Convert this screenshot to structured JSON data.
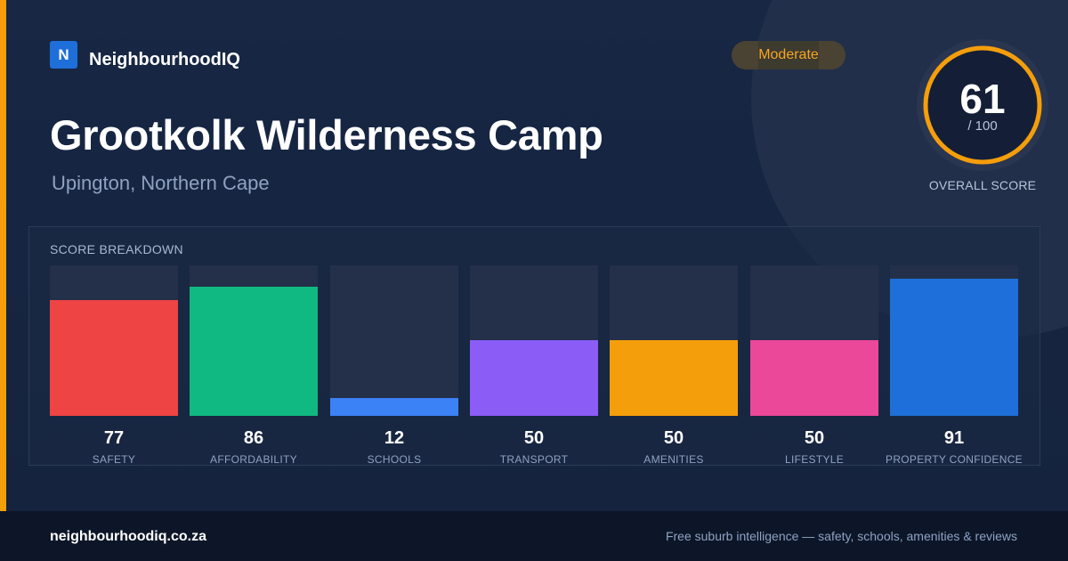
{
  "brand": {
    "logo_letter": "N",
    "name": "NeighbourhoodIQ",
    "color": "#1e6fd9"
  },
  "badge": {
    "label": "Moderate",
    "color": "#f5a623"
  },
  "location": {
    "title": "Grootkolk Wilderness Camp",
    "subtitle": "Upington, Northern Cape"
  },
  "overall": {
    "score": "61",
    "denominator": "/ 100",
    "label": "OVERALL SCORE",
    "value": 61,
    "max": 100,
    "color": "#f59e0b"
  },
  "breakdown": {
    "title": "SCORE BREAKDOWN",
    "categories": [
      {
        "label": "SAFETY",
        "value": 77,
        "color": "#ef4444"
      },
      {
        "label": "AFFORDABILITY",
        "value": 86,
        "color": "#10b981"
      },
      {
        "label": "SCHOOLS",
        "value": 12,
        "color": "#3b82f6"
      },
      {
        "label": "TRANSPORT",
        "value": 50,
        "color": "#8b5cf6"
      },
      {
        "label": "AMENITIES",
        "value": 50,
        "color": "#f59e0b"
      },
      {
        "label": "LIFESTYLE",
        "value": 50,
        "color": "#ec4899"
      },
      {
        "label": "PROPERTY CONFIDENCE",
        "value": 91,
        "color": "#1e6fd9"
      }
    ]
  },
  "footer": {
    "url": "neighbourhoodiq.co.za",
    "tagline": "Free suburb intelligence — safety, schools, amenities & reviews"
  }
}
